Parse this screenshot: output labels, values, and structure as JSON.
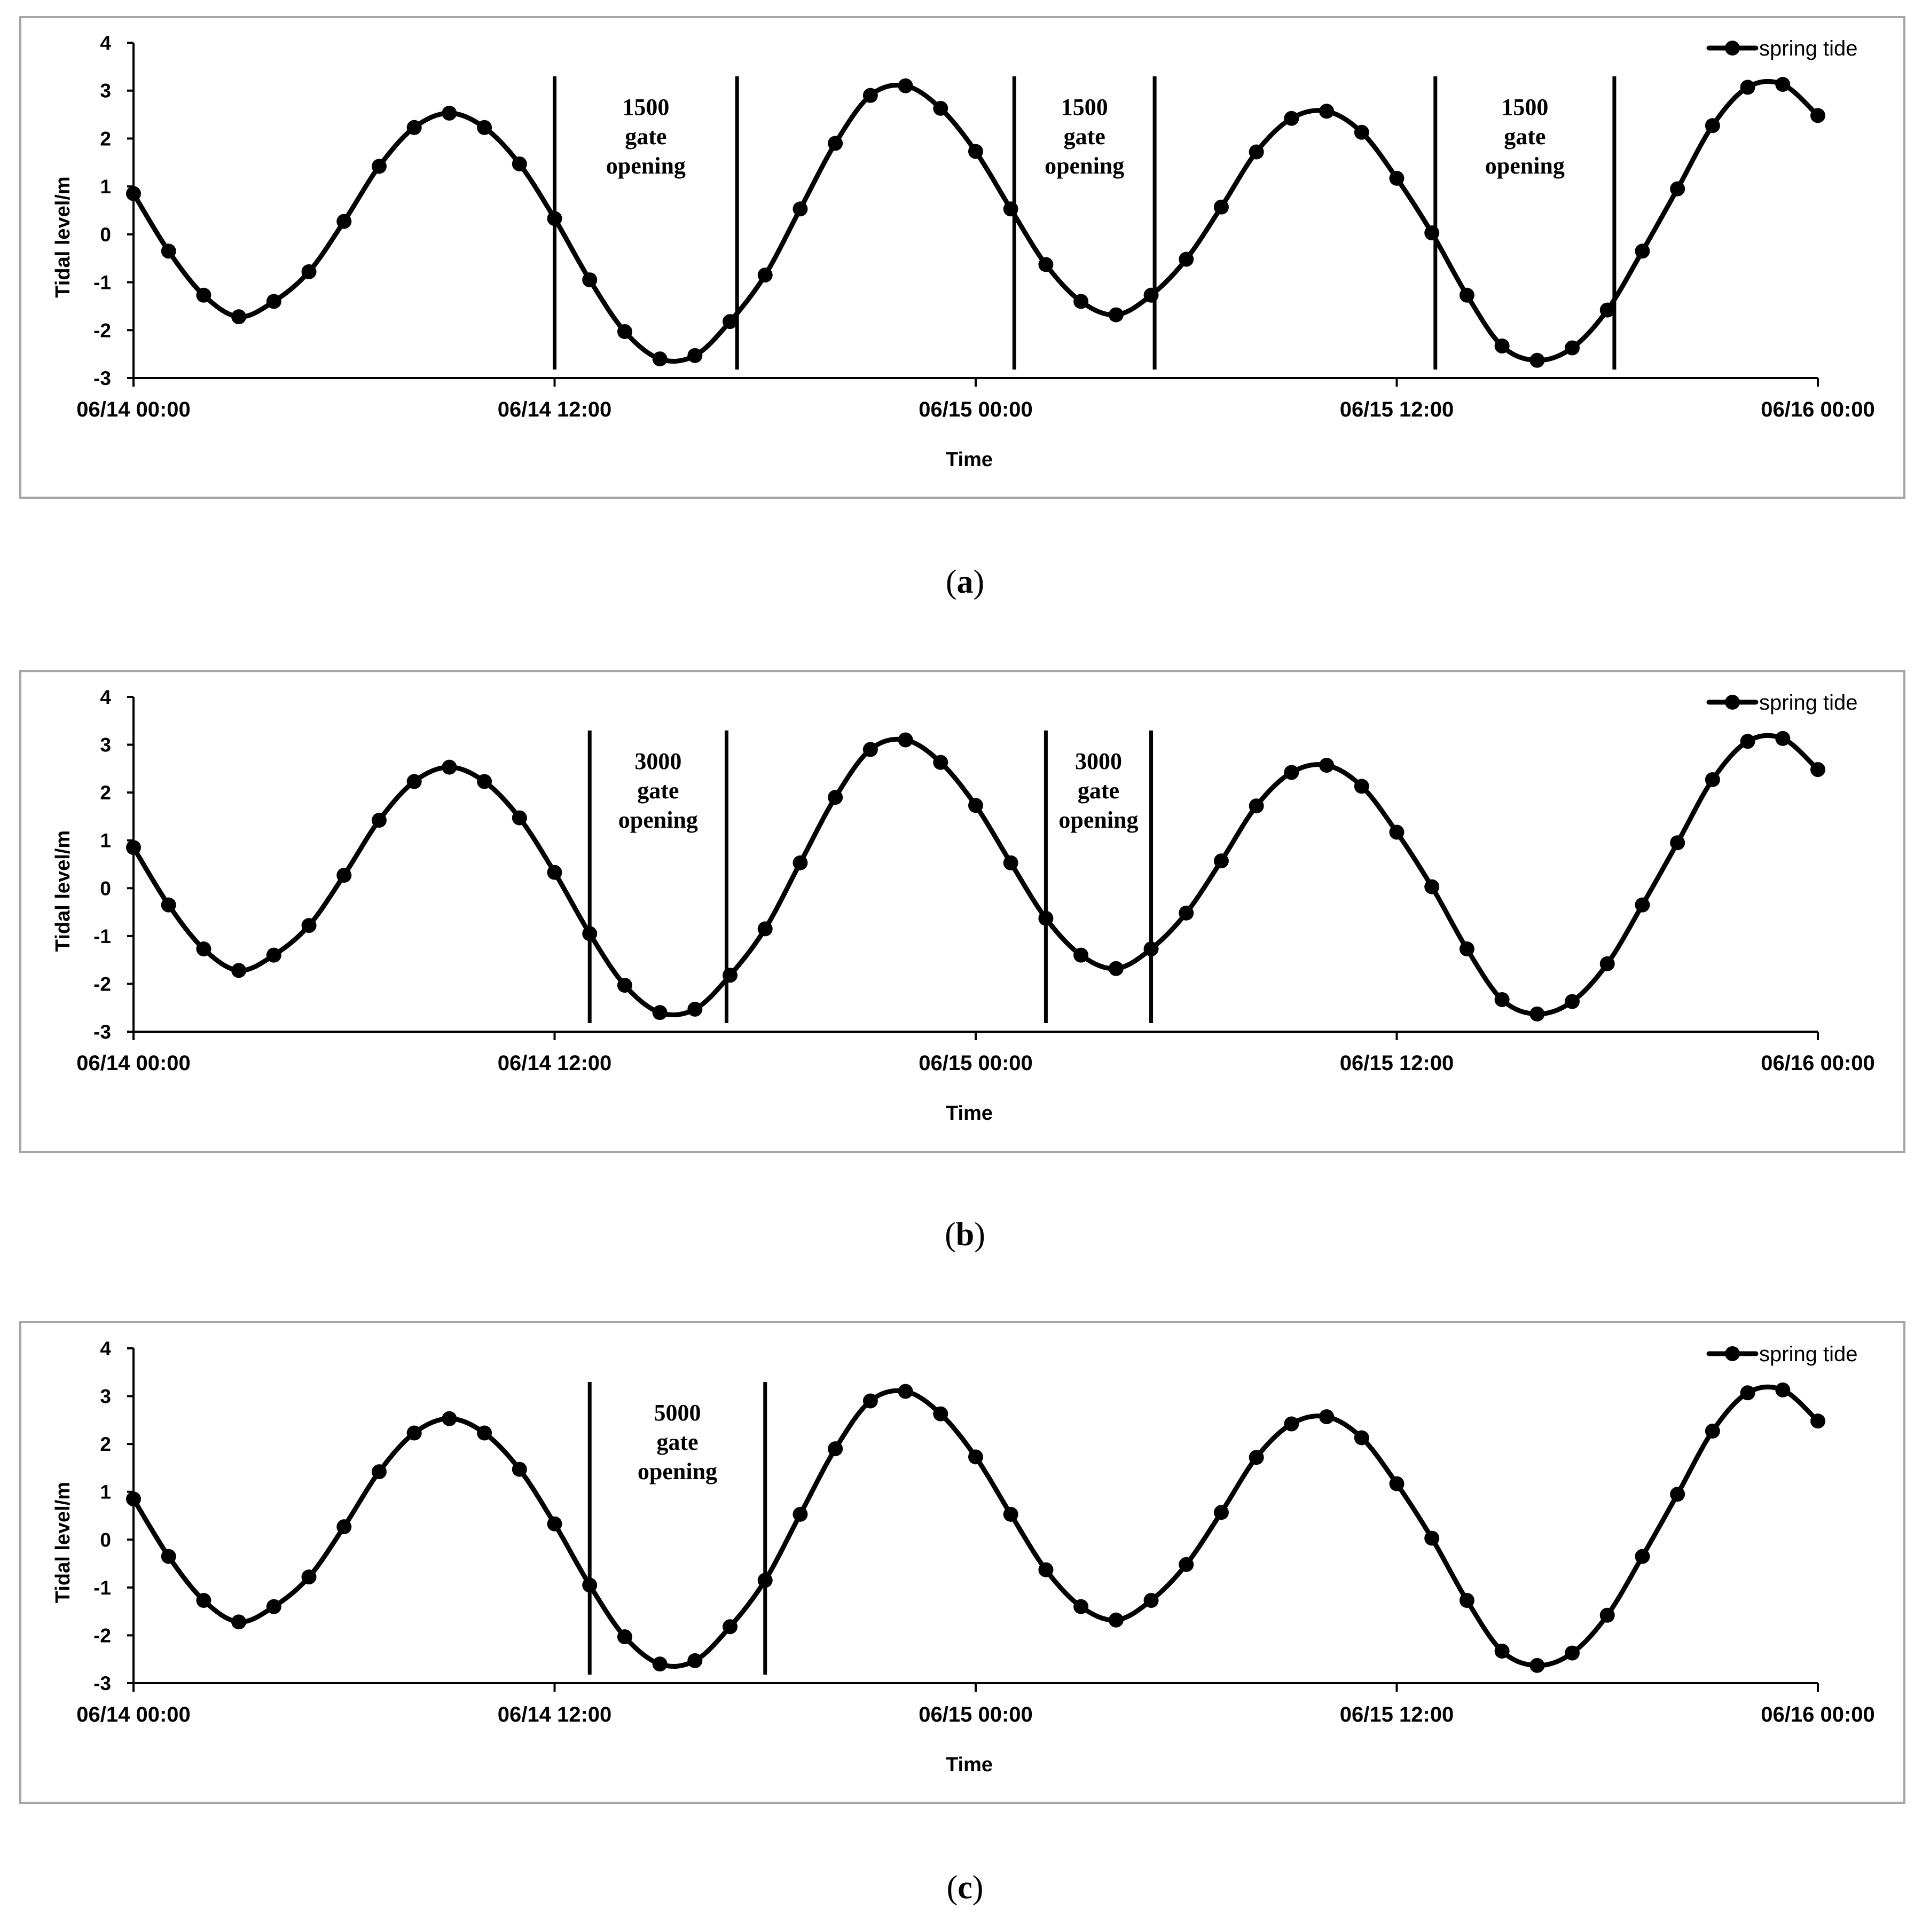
{
  "chart_data": [
    {
      "type": "line",
      "panel_label": "a",
      "xlabel": "Time",
      "ylabel": "Tidal level/m",
      "ylim": [
        -3,
        4
      ],
      "yticks": [
        4,
        3,
        2,
        1,
        0,
        -1,
        -2,
        -3
      ],
      "xlim_hours": [
        0,
        48
      ],
      "xticks": [
        {
          "label": "06/14 00:00",
          "hour": 0
        },
        {
          "label": "06/14 12:00",
          "hour": 12
        },
        {
          "label": "06/15 00:00",
          "hour": 24
        },
        {
          "label": "06/15 12:00",
          "hour": 36
        },
        {
          "label": "06/16 00:00",
          "hour": 48
        }
      ],
      "legend": "top-right",
      "series": [
        {
          "name": "spring tide",
          "hours": [
            0,
            1,
            2,
            3,
            4,
            5,
            6,
            7,
            8,
            9,
            10,
            11,
            12,
            13,
            14,
            15,
            16,
            17,
            18,
            19,
            20,
            21,
            22,
            23,
            24,
            25,
            26,
            27,
            28,
            29,
            30,
            31,
            32,
            33,
            34,
            35,
            36,
            37,
            38,
            39,
            40,
            41,
            42,
            43,
            44,
            45,
            46,
            47,
            48
          ],
          "values": [
            0.85,
            -0.35,
            -1.27,
            -1.72,
            -1.4,
            -0.78,
            0.27,
            1.42,
            2.23,
            2.53,
            2.23,
            1.47,
            0.33,
            -0.95,
            -2.03,
            -2.6,
            -2.53,
            -1.82,
            -0.85,
            0.53,
            1.9,
            2.9,
            3.1,
            2.63,
            1.73,
            0.53,
            -0.63,
            -1.4,
            -1.68,
            -1.27,
            -0.52,
            0.57,
            1.72,
            2.42,
            2.57,
            2.13,
            1.17,
            0.03,
            -1.27,
            -2.33,
            -2.63,
            -2.37,
            -1.58,
            -0.35,
            0.95,
            2.27,
            3.07,
            3.13,
            2.48
          ]
        }
      ],
      "annotations": [
        {
          "lines": [
            "1500",
            "gate",
            "opening"
          ],
          "from_hour": 12,
          "to_hour": 17.2
        },
        {
          "lines": [
            "1500",
            "gate",
            "opening"
          ],
          "from_hour": 25.1,
          "to_hour": 29.1
        },
        {
          "lines": [
            "1500",
            "gate",
            "opening"
          ],
          "from_hour": 37.1,
          "to_hour": 42.2
        }
      ]
    },
    {
      "type": "line",
      "panel_label": "b",
      "xlabel": "Time",
      "ylabel": "Tidal level/m",
      "ylim": [
        -3,
        4
      ],
      "yticks": [
        4,
        3,
        2,
        1,
        0,
        -1,
        -2,
        -3
      ],
      "xlim_hours": [
        0,
        48
      ],
      "xticks": [
        {
          "label": "06/14 00:00",
          "hour": 0
        },
        {
          "label": "06/14 12:00",
          "hour": 12
        },
        {
          "label": "06/15 00:00",
          "hour": 24
        },
        {
          "label": "06/15 12:00",
          "hour": 36
        },
        {
          "label": "06/16 00:00",
          "hour": 48
        }
      ],
      "legend": "top-right",
      "series": [
        {
          "name": "spring tide",
          "hours": [
            0,
            1,
            2,
            3,
            4,
            5,
            6,
            7,
            8,
            9,
            10,
            11,
            12,
            13,
            14,
            15,
            16,
            17,
            18,
            19,
            20,
            21,
            22,
            23,
            24,
            25,
            26,
            27,
            28,
            29,
            30,
            31,
            32,
            33,
            34,
            35,
            36,
            37,
            38,
            39,
            40,
            41,
            42,
            43,
            44,
            45,
            46,
            47,
            48
          ],
          "values": [
            0.85,
            -0.35,
            -1.27,
            -1.72,
            -1.4,
            -0.78,
            0.27,
            1.42,
            2.23,
            2.53,
            2.23,
            1.47,
            0.33,
            -0.95,
            -2.03,
            -2.6,
            -2.53,
            -1.82,
            -0.85,
            0.53,
            1.9,
            2.9,
            3.1,
            2.63,
            1.73,
            0.53,
            -0.63,
            -1.4,
            -1.68,
            -1.27,
            -0.52,
            0.57,
            1.72,
            2.42,
            2.57,
            2.13,
            1.17,
            0.03,
            -1.27,
            -2.33,
            -2.63,
            -2.37,
            -1.58,
            -0.35,
            0.95,
            2.27,
            3.07,
            3.13,
            2.48
          ]
        }
      ],
      "annotations": [
        {
          "lines": [
            "3000",
            "gate",
            "opening"
          ],
          "from_hour": 13,
          "to_hour": 16.9
        },
        {
          "lines": [
            "3000",
            "gate",
            "opening"
          ],
          "from_hour": 26,
          "to_hour": 29
        }
      ]
    },
    {
      "type": "line",
      "panel_label": "c",
      "xlabel": "Time",
      "ylabel": "Tidal level/m",
      "ylim": [
        -3,
        4
      ],
      "yticks": [
        4,
        3,
        2,
        1,
        0,
        -1,
        -2,
        -3
      ],
      "xlim_hours": [
        0,
        48
      ],
      "xticks": [
        {
          "label": "06/14 00:00",
          "hour": 0
        },
        {
          "label": "06/14 12:00",
          "hour": 12
        },
        {
          "label": "06/15 00:00",
          "hour": 24
        },
        {
          "label": "06/15 12:00",
          "hour": 36
        },
        {
          "label": "06/16 00:00",
          "hour": 48
        }
      ],
      "legend": "top-right",
      "series": [
        {
          "name": "spring tide",
          "hours": [
            0,
            1,
            2,
            3,
            4,
            5,
            6,
            7,
            8,
            9,
            10,
            11,
            12,
            13,
            14,
            15,
            16,
            17,
            18,
            19,
            20,
            21,
            22,
            23,
            24,
            25,
            26,
            27,
            28,
            29,
            30,
            31,
            32,
            33,
            34,
            35,
            36,
            37,
            38,
            39,
            40,
            41,
            42,
            43,
            44,
            45,
            46,
            47,
            48
          ],
          "values": [
            0.85,
            -0.35,
            -1.27,
            -1.72,
            -1.4,
            -0.78,
            0.27,
            1.42,
            2.23,
            2.53,
            2.23,
            1.47,
            0.33,
            -0.95,
            -2.03,
            -2.6,
            -2.53,
            -1.82,
            -0.85,
            0.53,
            1.9,
            2.9,
            3.1,
            2.63,
            1.73,
            0.53,
            -0.63,
            -1.4,
            -1.68,
            -1.27,
            -0.52,
            0.57,
            1.72,
            2.42,
            2.57,
            2.13,
            1.17,
            0.03,
            -1.27,
            -2.33,
            -2.63,
            -2.37,
            -1.58,
            -0.35,
            0.95,
            2.27,
            3.07,
            3.13,
            2.48
          ]
        }
      ],
      "annotations": [
        {
          "lines": [
            "5000",
            "gate",
            "opening"
          ],
          "from_hour": 13,
          "to_hour": 18
        }
      ]
    }
  ]
}
